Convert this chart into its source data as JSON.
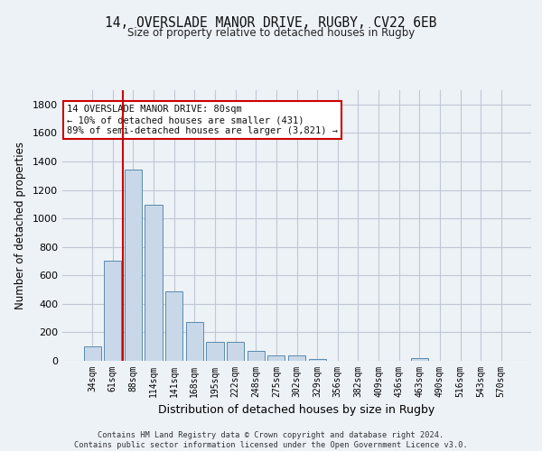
{
  "title_line1": "14, OVERSLADE MANOR DRIVE, RUGBY, CV22 6EB",
  "title_line2": "Size of property relative to detached houses in Rugby",
  "xlabel": "Distribution of detached houses by size in Rugby",
  "ylabel": "Number of detached properties",
  "categories": [
    "34sqm",
    "61sqm",
    "88sqm",
    "114sqm",
    "141sqm",
    "168sqm",
    "195sqm",
    "222sqm",
    "248sqm",
    "275sqm",
    "302sqm",
    "329sqm",
    "356sqm",
    "382sqm",
    "409sqm",
    "436sqm",
    "463sqm",
    "490sqm",
    "516sqm",
    "543sqm",
    "570sqm"
  ],
  "values": [
    100,
    700,
    1340,
    1095,
    490,
    270,
    135,
    135,
    68,
    35,
    35,
    15,
    0,
    0,
    0,
    0,
    18,
    0,
    0,
    0,
    0
  ],
  "bar_color": "#c8d8e8",
  "bar_edge_color": "#5a8ab0",
  "highlight_bar_index": 1,
  "highlight_color": "#cc0000",
  "annotation_text": "14 OVERSLADE MANOR DRIVE: 80sqm\n← 10% of detached houses are smaller (431)\n89% of semi-detached houses are larger (3,821) →",
  "annotation_box_color": "#ffffff",
  "annotation_box_edge": "#cc0000",
  "ylim": [
    0,
    1900
  ],
  "yticks": [
    0,
    200,
    400,
    600,
    800,
    1000,
    1200,
    1400,
    1600,
    1800
  ],
  "footer_text": "Contains HM Land Registry data © Crown copyright and database right 2024.\nContains public sector information licensed under the Open Government Licence v3.0.",
  "background_color": "#edf2f7",
  "plot_bg_color": "#edf2f7",
  "grid_color": "#c0c8d4"
}
